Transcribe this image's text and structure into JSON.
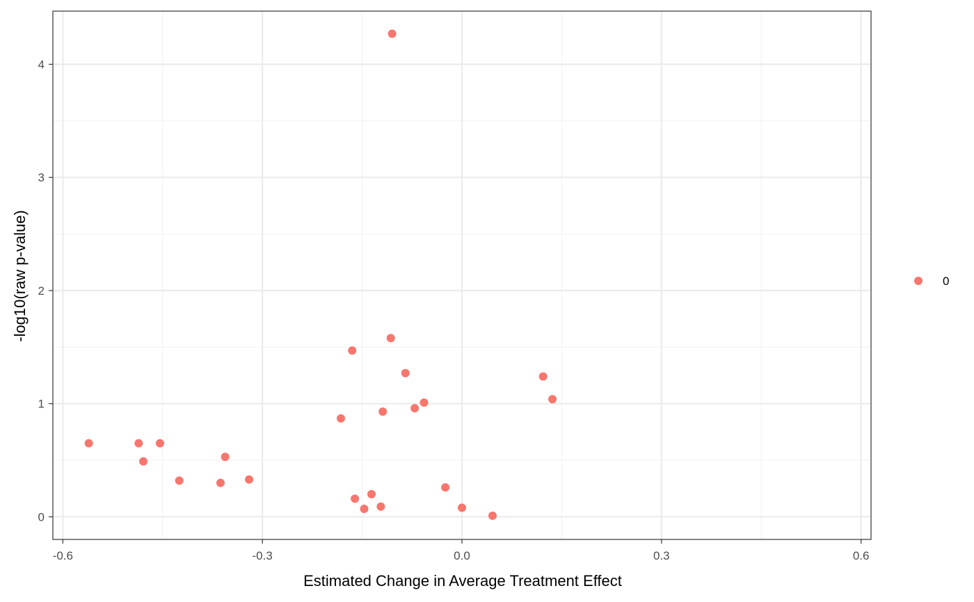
{
  "chart_data": {
    "type": "scatter",
    "title": "",
    "xlabel": "Estimated Change in Average Treatment Effect",
    "ylabel": "-log10(raw p-value)",
    "xlim": [
      -0.615,
      0.615
    ],
    "ylim": [
      -0.2,
      4.47
    ],
    "x_major_ticks": [
      -0.6,
      -0.3,
      0.0,
      0.3,
      0.6
    ],
    "x_tick_labels": [
      "-0.6",
      "-0.3",
      "0.0",
      "0.3",
      "0.6"
    ],
    "x_minor_ticks": [
      -0.45,
      -0.15,
      0.15,
      0.45
    ],
    "y_major_ticks": [
      0,
      1,
      2,
      3,
      4
    ],
    "y_tick_labels": [
      "0",
      "1",
      "2",
      "3",
      "4"
    ],
    "y_minor_ticks": [
      0.5,
      1.5,
      2.5,
      3.5
    ],
    "grid": true,
    "legend_position": "right",
    "series": [
      {
        "name": "0",
        "color": "#F8766D",
        "points": [
          {
            "x": -0.105,
            "y": 4.27
          },
          {
            "x": -0.107,
            "y": 1.58
          },
          {
            "x": -0.165,
            "y": 1.47
          },
          {
            "x": -0.085,
            "y": 1.27
          },
          {
            "x": 0.122,
            "y": 1.24
          },
          {
            "x": 0.136,
            "y": 1.04
          },
          {
            "x": -0.057,
            "y": 1.01
          },
          {
            "x": -0.071,
            "y": 0.96
          },
          {
            "x": -0.119,
            "y": 0.93
          },
          {
            "x": -0.182,
            "y": 0.87
          },
          {
            "x": -0.561,
            "y": 0.65
          },
          {
            "x": -0.486,
            "y": 0.65
          },
          {
            "x": -0.454,
            "y": 0.65
          },
          {
            "x": -0.479,
            "y": 0.49
          },
          {
            "x": -0.356,
            "y": 0.53
          },
          {
            "x": -0.425,
            "y": 0.32
          },
          {
            "x": -0.363,
            "y": 0.3
          },
          {
            "x": -0.32,
            "y": 0.33
          },
          {
            "x": -0.025,
            "y": 0.26
          },
          {
            "x": -0.136,
            "y": 0.2
          },
          {
            "x": -0.161,
            "y": 0.16
          },
          {
            "x": -0.147,
            "y": 0.07
          },
          {
            "x": -0.122,
            "y": 0.09
          },
          {
            "x": 0.0,
            "y": 0.08
          },
          {
            "x": 0.046,
            "y": 0.01
          }
        ]
      }
    ],
    "colors": {
      "panel_border": "#333333",
      "grid_major": "#ebebeb",
      "grid_minor": "#f2f2f2",
      "tick_text": "#4d4d4d",
      "axis_title": "#000000"
    }
  }
}
